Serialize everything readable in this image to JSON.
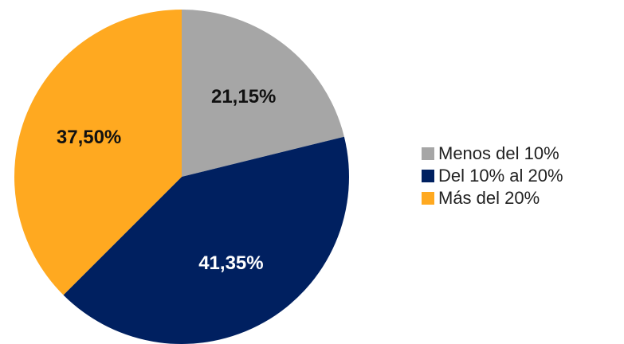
{
  "chart_data": {
    "type": "pie",
    "categories": [
      "Menos del 10%",
      "Del 10% al 20%",
      "Más del 20%"
    ],
    "values": [
      21.15,
      41.35,
      37.5
    ],
    "value_labels": [
      "21,15%",
      "41,35%",
      "37,50%"
    ],
    "colors": [
      "#a6a6a6",
      "#002060",
      "#ffa920"
    ],
    "legend": "right"
  }
}
